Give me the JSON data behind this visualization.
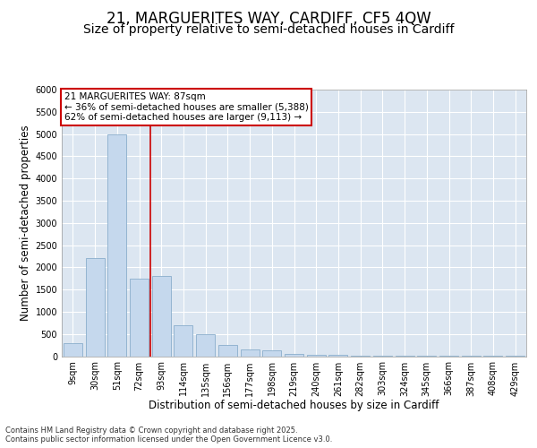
{
  "title_line1": "21, MARGUERITES WAY, CARDIFF, CF5 4QW",
  "title_line2": "Size of property relative to semi-detached houses in Cardiff",
  "xlabel": "Distribution of semi-detached houses by size in Cardiff",
  "ylabel": "Number of semi-detached properties",
  "footnote": "Contains HM Land Registry data © Crown copyright and database right 2025.\nContains public sector information licensed under the Open Government Licence v3.0.",
  "bar_labels": [
    "9sqm",
    "30sqm",
    "51sqm",
    "72sqm",
    "93sqm",
    "114sqm",
    "135sqm",
    "156sqm",
    "177sqm",
    "198sqm",
    "219sqm",
    "240sqm",
    "261sqm",
    "282sqm",
    "303sqm",
    "324sqm",
    "345sqm",
    "366sqm",
    "387sqm",
    "408sqm",
    "429sqm"
  ],
  "bar_values": [
    290,
    2200,
    5000,
    1750,
    1800,
    700,
    500,
    250,
    160,
    130,
    60,
    40,
    25,
    15,
    8,
    5,
    3,
    2,
    2,
    1,
    1
  ],
  "bar_color": "#c5d8ed",
  "bar_edge_color": "#8aaecc",
  "vline_x_index": 3.5,
  "vline_color": "#cc0000",
  "annotation_title": "21 MARGUERITES WAY: 87sqm",
  "annotation_line1": "← 36% of semi-detached houses are smaller (5,388)",
  "annotation_line2": "62% of semi-detached houses are larger (9,113) →",
  "annotation_box_edge_color": "#cc0000",
  "ylim": [
    0,
    6000
  ],
  "yticks": [
    0,
    500,
    1000,
    1500,
    2000,
    2500,
    3000,
    3500,
    4000,
    4500,
    5000,
    5500,
    6000
  ],
  "fig_bg_color": "#ffffff",
  "plot_bg_color": "#dce6f1",
  "grid_color": "#ffffff",
  "title_fontsize": 12,
  "subtitle_fontsize": 10,
  "axis_label_fontsize": 8.5,
  "tick_fontsize": 7,
  "annotation_fontsize": 7.5,
  "footnote_fontsize": 6
}
